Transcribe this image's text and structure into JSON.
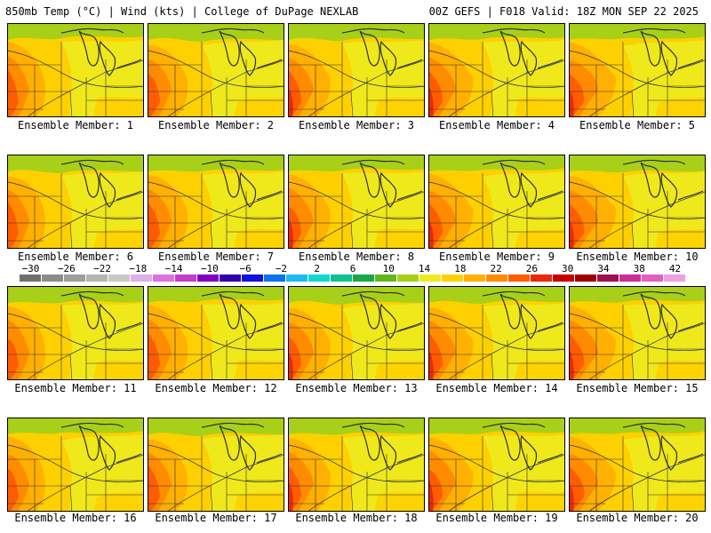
{
  "header": {
    "left": "850mb Temp (°C) | Wind (kts) | College of DuPage NEXLAB",
    "right": "00Z GEFS | F018 Valid: 18Z MON SEP 22 2025"
  },
  "member_prefix": "Ensemble Member: ",
  "members": [
    "1",
    "2",
    "3",
    "4",
    "5",
    "6",
    "7",
    "8",
    "9",
    "10",
    "11",
    "12",
    "13",
    "14",
    "15",
    "16",
    "17",
    "18",
    "19",
    "20"
  ],
  "colorbar": {
    "ticks": [
      "−30",
      "−26",
      "−22",
      "−18",
      "−14",
      "−10",
      "−6",
      "−2",
      "2",
      "6",
      "10",
      "14",
      "18",
      "22",
      "26",
      "30",
      "34",
      "38",
      "42"
    ],
    "colors": [
      "#707070",
      "#8c8c8c",
      "#9e9e9e",
      "#b4b4b4",
      "#c8c8c8",
      "#dcb0e8",
      "#e070e0",
      "#c040c8",
      "#8000c0",
      "#3000a8",
      "#1010e0",
      "#0a74e8",
      "#20b8f0",
      "#10d8d0",
      "#10c090",
      "#18a848",
      "#60b820",
      "#a8d018",
      "#ecec20",
      "#ffd000",
      "#ffb000",
      "#ff8c00",
      "#ff5c00",
      "#ec2808",
      "#c80000",
      "#a00000",
      "#a01050",
      "#c83090",
      "#e060c0",
      "#f0a0e0"
    ]
  },
  "map": {
    "bg_green": "#a8d018",
    "yellow": "#ecec20",
    "gold": "#ffd000",
    "orange": "#ffb000",
    "dorange": "#ff8c00",
    "red": "#ff5c00",
    "dred": "#ec2808",
    "line": "#303030"
  }
}
